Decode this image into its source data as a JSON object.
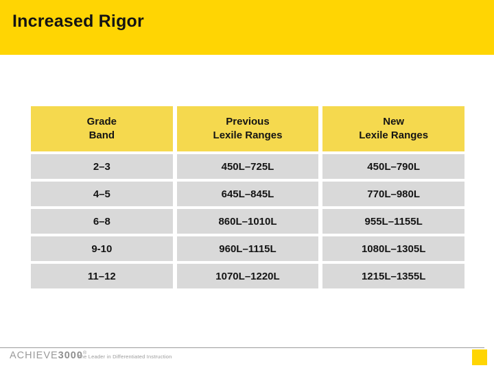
{
  "slide": {
    "title": "Increased Rigor"
  },
  "table": {
    "headers": [
      "Grade\nBand",
      "Previous\nLexile Ranges",
      "New\nLexile Ranges"
    ],
    "rows": [
      [
        "2–3",
        "450L–725L",
        "450L–790L"
      ],
      [
        "4–5",
        "645L–845L",
        "770L–980L"
      ],
      [
        "6–8",
        "860L–1010L",
        "955L–1155L"
      ],
      [
        "9-10",
        "960L–1115L",
        "1080L–1305L"
      ],
      [
        "11–12",
        "1070L–1220L",
        "1215L–1355L"
      ]
    ]
  },
  "footer": {
    "logo_text": "ACHIEVE",
    "logo_text_bold": "3000",
    "logo_reg": "®",
    "tagline": "The Leader in Differentiated Instruction"
  },
  "colors": {
    "band_yellow": "#FFD503",
    "header_yellow": "#F5D94E",
    "row_gray": "#D9D9D9",
    "text_black": "#141414",
    "footer_gray": "#9A9A9A"
  }
}
